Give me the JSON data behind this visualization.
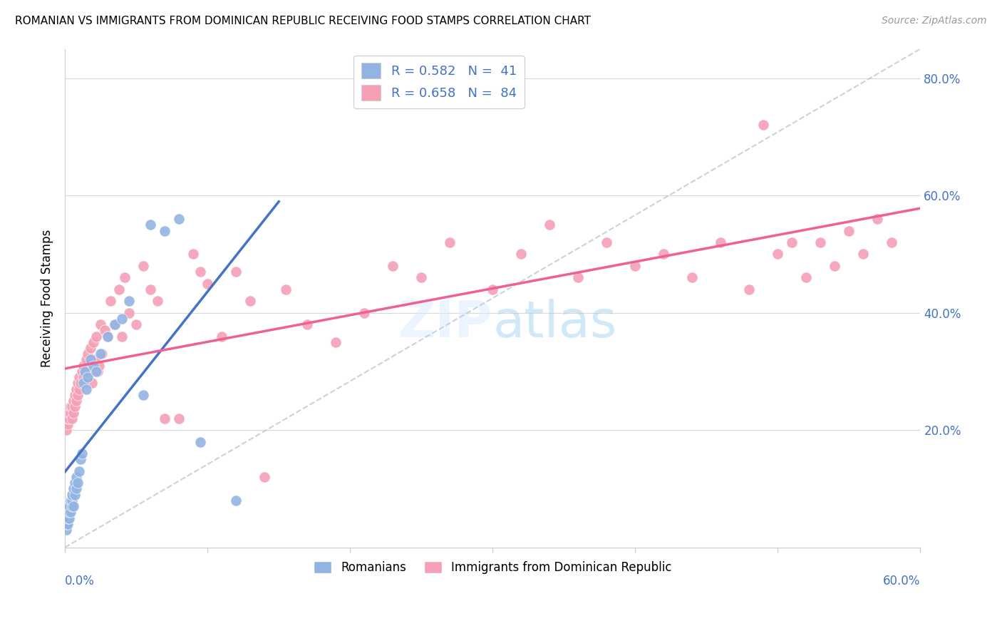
{
  "title": "ROMANIAN VS IMMIGRANTS FROM DOMINICAN REPUBLIC RECEIVING FOOD STAMPS CORRELATION CHART",
  "source": "Source: ZipAtlas.com",
  "ylabel": "Receiving Food Stamps",
  "yticks_vals": [
    0.2,
    0.4,
    0.6,
    0.8
  ],
  "yticks_labels": [
    "20.0%",
    "40.0%",
    "60.0%",
    "80.0%"
  ],
  "legend_label1": "R = 0.582   N =  41",
  "legend_label2": "R = 0.658   N =  84",
  "legend_bottom1": "Romanians",
  "legend_bottom2": "Immigrants from Dominican Republic",
  "color_romanian": "#92b4e3",
  "color_dominican": "#f5a0b5",
  "color_line_romanian": "#4472c4",
  "color_line_dominican": "#f06090",
  "color_diagonal": "#b8c8d8",
  "xlim": [
    0.0,
    0.6
  ],
  "ylim": [
    0.0,
    0.85
  ],
  "romanians_x": [
    0.001,
    0.001,
    0.002,
    0.002,
    0.002,
    0.003,
    0.003,
    0.003,
    0.004,
    0.004,
    0.005,
    0.005,
    0.005,
    0.006,
    0.006,
    0.007,
    0.007,
    0.008,
    0.008,
    0.009,
    0.01,
    0.011,
    0.012,
    0.013,
    0.014,
    0.015,
    0.016,
    0.018,
    0.02,
    0.022,
    0.025,
    0.03,
    0.035,
    0.04,
    0.045,
    0.055,
    0.06,
    0.07,
    0.08,
    0.095,
    0.12
  ],
  "romanians_y": [
    0.03,
    0.04,
    0.04,
    0.05,
    0.06,
    0.05,
    0.06,
    0.07,
    0.06,
    0.08,
    0.07,
    0.08,
    0.09,
    0.07,
    0.1,
    0.09,
    0.11,
    0.1,
    0.12,
    0.11,
    0.13,
    0.15,
    0.16,
    0.28,
    0.3,
    0.27,
    0.29,
    0.32,
    0.31,
    0.3,
    0.33,
    0.36,
    0.38,
    0.39,
    0.42,
    0.26,
    0.55,
    0.54,
    0.56,
    0.18,
    0.08
  ],
  "dominican_x": [
    0.001,
    0.002,
    0.002,
    0.003,
    0.003,
    0.004,
    0.004,
    0.005,
    0.005,
    0.006,
    0.006,
    0.007,
    0.007,
    0.008,
    0.008,
    0.009,
    0.009,
    0.01,
    0.01,
    0.011,
    0.012,
    0.013,
    0.013,
    0.014,
    0.015,
    0.016,
    0.017,
    0.018,
    0.019,
    0.02,
    0.021,
    0.022,
    0.023,
    0.024,
    0.025,
    0.026,
    0.028,
    0.03,
    0.032,
    0.035,
    0.038,
    0.04,
    0.042,
    0.045,
    0.05,
    0.055,
    0.06,
    0.065,
    0.07,
    0.08,
    0.09,
    0.095,
    0.1,
    0.11,
    0.12,
    0.13,
    0.14,
    0.155,
    0.17,
    0.19,
    0.21,
    0.23,
    0.25,
    0.27,
    0.3,
    0.32,
    0.34,
    0.36,
    0.38,
    0.4,
    0.42,
    0.44,
    0.46,
    0.48,
    0.49,
    0.5,
    0.51,
    0.52,
    0.53,
    0.54,
    0.55,
    0.56,
    0.57,
    0.58
  ],
  "dominican_y": [
    0.2,
    0.21,
    0.22,
    0.22,
    0.23,
    0.23,
    0.24,
    0.22,
    0.24,
    0.23,
    0.25,
    0.24,
    0.26,
    0.25,
    0.27,
    0.26,
    0.28,
    0.27,
    0.29,
    0.28,
    0.3,
    0.29,
    0.31,
    0.28,
    0.32,
    0.33,
    0.3,
    0.34,
    0.28,
    0.35,
    0.32,
    0.36,
    0.3,
    0.31,
    0.38,
    0.33,
    0.37,
    0.36,
    0.42,
    0.38,
    0.44,
    0.36,
    0.46,
    0.4,
    0.38,
    0.48,
    0.44,
    0.42,
    0.22,
    0.22,
    0.5,
    0.47,
    0.45,
    0.36,
    0.47,
    0.42,
    0.12,
    0.44,
    0.38,
    0.35,
    0.4,
    0.48,
    0.46,
    0.52,
    0.44,
    0.5,
    0.55,
    0.46,
    0.52,
    0.48,
    0.5,
    0.46,
    0.52,
    0.44,
    0.72,
    0.5,
    0.52,
    0.46,
    0.52,
    0.48,
    0.54,
    0.5,
    0.56,
    0.52
  ]
}
